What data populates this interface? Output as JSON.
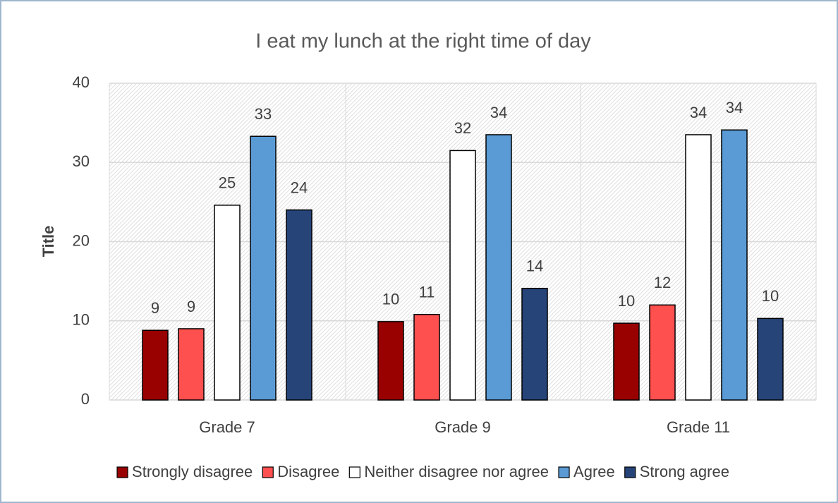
{
  "chart_data": {
    "type": "bar",
    "title": "I eat my lunch at the right time of day",
    "y_label": "Title",
    "categories": [
      "Grade 7",
      "Grade 9",
      "Grade 11"
    ],
    "series": [
      {
        "name": "Strongly disagree",
        "color": "#990000",
        "values": [
          8.8,
          9.9,
          9.7
        ],
        "value_labels": [
          "9",
          "10",
          "10"
        ]
      },
      {
        "name": "Disagree",
        "color": "#ff5050",
        "values": [
          9.0,
          10.8,
          12.0
        ],
        "value_labels": [
          "9",
          "11",
          "12"
        ]
      },
      {
        "name": "Neither disagree nor agree",
        "color": "#ffffff",
        "values": [
          24.6,
          31.5,
          33.5
        ],
        "value_labels": [
          "25",
          "32",
          "34"
        ]
      },
      {
        "name": "Agree",
        "color": "#5b9bd5",
        "values": [
          33.3,
          33.5,
          34.1
        ],
        "value_labels": [
          "33",
          "34",
          "34"
        ]
      },
      {
        "name": "Strong agree",
        "color": "#264478",
        "values": [
          24.0,
          14.1,
          10.3
        ],
        "value_labels": [
          "24",
          "14",
          "10"
        ]
      }
    ],
    "ylim": [
      0,
      40
    ],
    "yticks": [
      0,
      10,
      20,
      30,
      40
    ],
    "grid": true,
    "legend": "bottom"
  }
}
